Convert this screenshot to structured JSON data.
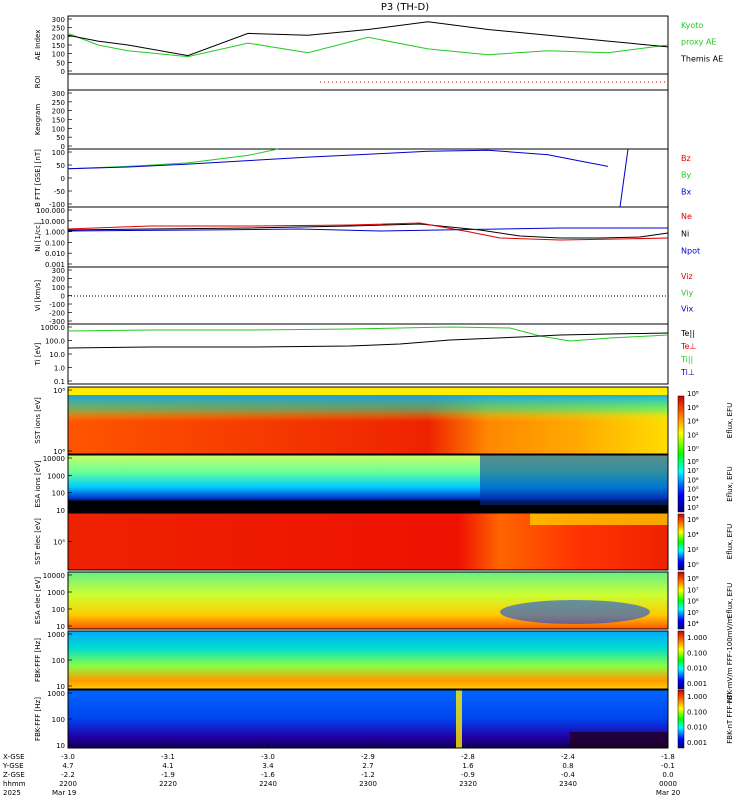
{
  "title": "P3 (TH-D)",
  "colors": {
    "green": "#22cc22",
    "red": "#e00000",
    "blue": "#0000d0",
    "black": "#000000"
  },
  "chart_data": {
    "type": "line",
    "x_axis": {
      "rows": [
        {
          "label": "X-GSE",
          "values": [
            "-3.0",
            "-3.1",
            "-3.0",
            "-2.9",
            "-2.8",
            "-2.4",
            "-1.8"
          ]
        },
        {
          "label": "Y-GSE",
          "values": [
            "4.7",
            "4.1",
            "3.4",
            "2.7",
            "1.6",
            "0.8",
            "-0.1"
          ]
        },
        {
          "label": "Z-GSE",
          "values": [
            "-2.2",
            "-1.9",
            "-1.6",
            "-1.2",
            "-0.9",
            "-0.4",
            "0.0"
          ]
        },
        {
          "label": "hhmm",
          "values": [
            "2200",
            "2220",
            "2240",
            "2300",
            "2320",
            "2340",
            "0000"
          ]
        }
      ],
      "date_labels": [
        "2025",
        "Mar 19",
        "Mar 20"
      ]
    },
    "panels": [
      {
        "id": "ae",
        "ylabel": "AE Index",
        "yticks": [
          "300",
          "250",
          "200",
          "150",
          "100",
          "50",
          "0"
        ],
        "ylim": [
          0,
          300
        ],
        "legend": [
          {
            "text": "Kyoto",
            "color": "#22cc22"
          },
          {
            "text": "proxy AE",
            "color": "#22cc22"
          },
          {
            "text": "Themis AE",
            "color": "#000000"
          }
        ],
        "series": [
          {
            "name": "Kyoto proxy AE",
            "color": "#22cc22",
            "x": [
              0,
              0.05,
              0.1,
              0.2,
              0.3,
              0.4,
              0.5,
              0.6,
              0.7,
              0.8,
              0.9,
              1
            ],
            "y": [
              210,
              150,
              120,
              90,
              160,
              110,
              190,
              130,
              100,
              120,
              110,
              150
            ]
          },
          {
            "name": "Themis AE",
            "color": "#000000",
            "x": [
              0,
              0.05,
              0.1,
              0.2,
              0.3,
              0.4,
              0.5,
              0.6,
              0.7,
              0.8,
              0.9,
              1
            ],
            "y": [
              200,
              170,
              150,
              95,
              210,
              200,
              230,
              270,
              230,
              200,
              170,
              140
            ]
          }
        ]
      },
      {
        "id": "roi",
        "ylabel": "ROI",
        "yticks": []
      },
      {
        "id": "keogram",
        "ylabel": "Keogram",
        "yticks": [
          "300",
          "250",
          "200",
          "150",
          "100",
          "50",
          "0"
        ]
      },
      {
        "id": "bfield",
        "ylabel": "B FTT [GSE] [nT]",
        "yticks": [
          "100",
          "50",
          "0",
          "-50",
          "-100"
        ],
        "ylim": [
          -100,
          100
        ],
        "legend": [
          {
            "text": "Bz",
            "color": "#e00000"
          },
          {
            "text": "By",
            "color": "#22cc22"
          },
          {
            "text": "Bx",
            "color": "#0000d0"
          }
        ],
        "series": [
          {
            "name": "By",
            "color": "#22cc22",
            "x": [
              0,
              0.1,
              0.2,
              0.3,
              0.35
            ],
            "y": [
              32,
              40,
              52,
              78,
              100
            ]
          },
          {
            "name": "Bx",
            "color": "#0000d0",
            "x": [
              0,
              0.1,
              0.2,
              0.3,
              0.4,
              0.5,
              0.6,
              0.7,
              0.8,
              0.85,
              0.9
            ],
            "y": [
              32,
              38,
              48,
              60,
              72,
              82,
              92,
              96,
              80,
              60,
              40
            ]
          }
        ]
      },
      {
        "id": "ni",
        "ylabel": "Ni [1/cc]",
        "yticks": [
          "100.000",
          "10.000",
          "1.000",
          "0.100",
          "0.010",
          "0.001"
        ],
        "legend": [
          {
            "text": "Ne",
            "color": "#e00000"
          },
          {
            "text": "Ni",
            "color": "#000000"
          },
          {
            "text": "Npot",
            "color": "#0000d0"
          }
        ]
      },
      {
        "id": "vi",
        "ylabel": "Vi [km/s]",
        "yticks": [
          "300",
          "200",
          "100",
          "0",
          "-100",
          "-200",
          "-300"
        ],
        "legend": [
          {
            "text": "Viz",
            "color": "#e00000"
          },
          {
            "text": "Viy",
            "color": "#22cc22"
          },
          {
            "text": "Vix",
            "color": "#0000d0"
          }
        ]
      },
      {
        "id": "ti",
        "ylabel": "Ti [eV]",
        "yticks": [
          "1000.0",
          "100.0",
          "10.0",
          "1.0",
          "0.1"
        ],
        "legend": [
          {
            "text": "Te||",
            "color": "#000000"
          },
          {
            "text": "Te⊥",
            "color": "#e00000"
          },
          {
            "text": "Ti||",
            "color": "#22cc22"
          },
          {
            "text": "Ti⊥",
            "color": "#0000d0"
          }
        ]
      },
      {
        "id": "sst_i",
        "ylabel": "SST ions [eV]",
        "yticks": [
          "10⁸",
          "10⁶"
        ],
        "cbar": "Eflux, EFU",
        "cbticks": [
          "10⁸",
          "10⁶",
          "10⁴",
          "10²",
          "10⁰"
        ]
      },
      {
        "id": "esa_i",
        "ylabel": "ESA ions [eV]",
        "yticks": [
          "10000",
          "1000",
          "100",
          "10"
        ],
        "cbar": "Eflux, EFU",
        "cbticks": [
          "10⁸",
          "10⁷",
          "10⁶",
          "10⁵",
          "10⁴",
          "10³"
        ]
      },
      {
        "id": "sst_e",
        "ylabel": "SST elec [eV]",
        "yticks": [
          "10⁵"
        ],
        "cbar": "Eflux, EFU",
        "cbticks": [
          "10⁶",
          "10⁴",
          "10²",
          "10⁰"
        ]
      },
      {
        "id": "esa_e",
        "ylabel": "ESA elec [eV]",
        "yticks": [
          "10000",
          "1000",
          "100",
          "10"
        ],
        "cbar": "Eflux, EFU",
        "cbticks": [
          "10⁸",
          "10⁷",
          "10⁶",
          "10⁵",
          "10⁴"
        ]
      },
      {
        "id": "fbk_e",
        "ylabel": "FBK-FFF [Hz]",
        "yticks": [
          "1000",
          "100",
          "10"
        ],
        "cbar": "FBK-mV/m FFF-100mV/m",
        "cbticks": [
          "1.000",
          "0.100",
          "0.010",
          "0.001"
        ]
      },
      {
        "id": "fbk_b",
        "ylabel": "FBK-FFF [Hz]",
        "yticks": [
          "1000",
          "100",
          "10"
        ],
        "cbar": "FBK-nT FFF-nT",
        "cbticks": [
          "1.000",
          "0.100",
          "0.010",
          "0.001"
        ]
      }
    ]
  }
}
